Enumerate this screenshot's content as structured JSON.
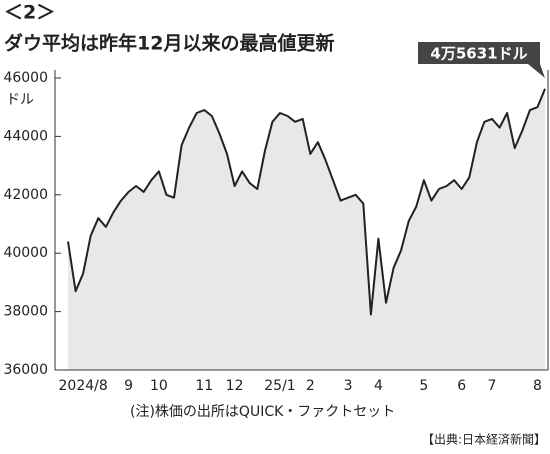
{
  "header": "＜2＞",
  "chart_data": {
    "type": "line",
    "title": "ダウ平均は昨年12月以来の最高値更新",
    "y_unit": "ドル",
    "annotation": "4万5631ドル",
    "note": "(注)株価の出所はQUICK・ファクトセット",
    "source": "【出典:日本経済新聞】",
    "categories": [
      null,
      null,
      "2024/8",
      null,
      null,
      null,
      null,
      null,
      "9",
      null,
      null,
      null,
      "10",
      null,
      null,
      null,
      null,
      null,
      "11",
      null,
      null,
      null,
      "12",
      null,
      null,
      null,
      null,
      null,
      "25/1",
      null,
      null,
      null,
      "2",
      null,
      null,
      null,
      null,
      "3",
      null,
      null,
      null,
      "4",
      null,
      null,
      null,
      null,
      null,
      "5",
      null,
      null,
      null,
      null,
      "6",
      null,
      null,
      null,
      "7",
      null,
      null,
      null,
      null,
      null,
      "8",
      null
    ],
    "series": [
      {
        "name": "ダウ平均",
        "color": "#222222",
        "values": [
          40400,
          38700,
          39300,
          40600,
          41200,
          40900,
          41400,
          41800,
          42100,
          42300,
          42100,
          42500,
          42800,
          42000,
          41900,
          43700,
          44300,
          44800,
          44900,
          44700,
          44100,
          43400,
          42300,
          42800,
          42400,
          42200,
          43500,
          44500,
          44800,
          44700,
          44500,
          44600,
          43400,
          43800,
          43200,
          42500,
          41800,
          41900,
          42000,
          41700,
          37900,
          40500,
          38300,
          39500,
          40100,
          41100,
          41600,
          42500,
          41800,
          42200,
          42300,
          42500,
          42200,
          42600,
          43800,
          44500,
          44600,
          44300,
          44800,
          43600,
          44200,
          44900,
          45000,
          45631
        ]
      }
    ],
    "ylim": [
      36000,
      46000
    ],
    "yticks": [
      36000,
      38000,
      40000,
      42000,
      44000,
      46000
    ],
    "grid": false
  }
}
